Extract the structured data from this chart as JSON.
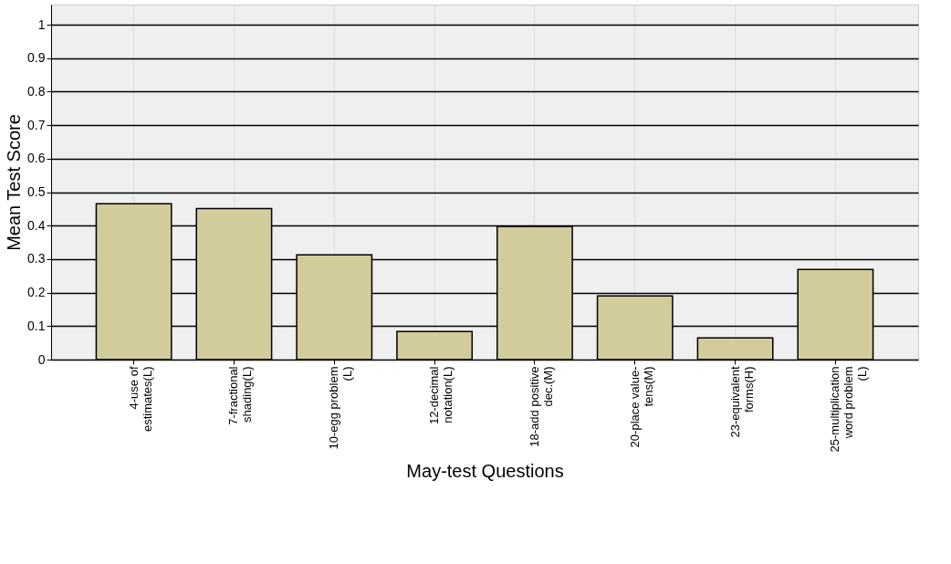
{
  "chart_data": {
    "type": "bar",
    "categories": [
      "4-use of\nestimates(L)",
      "7-fractional\nshading(L)",
      "10-egg problem\n(L)",
      "12-decimal\nnotation(L)",
      "18-add positive\ndec.(M)",
      "20-place value-\ntens(M)",
      "23-equivalent\nforms(H)",
      "25-multiplication\nword problem\n(L)"
    ],
    "values": [
      0.465,
      0.451,
      0.313,
      0.084,
      0.397,
      0.19,
      0.065,
      0.269
    ],
    "color": "#d2cc9a",
    "xlabel": "May-test Questions",
    "ylabel": "Mean Test Score",
    "ylim": [
      0,
      1.06
    ],
    "yticks": [
      0,
      0.1,
      0.2,
      0.3,
      0.4,
      0.5,
      0.6,
      0.7,
      0.8,
      0.9,
      1
    ],
    "grid": true
  }
}
